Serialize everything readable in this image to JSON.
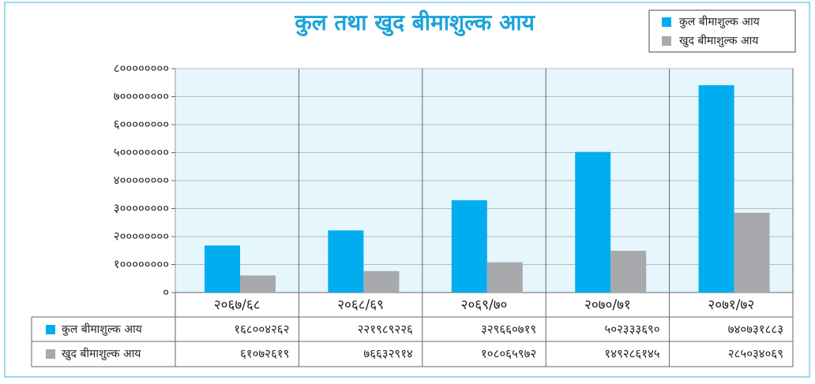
{
  "chart_data": {
    "type": "bar",
    "title": "कुल तथा खुद बीमाशुल्क आय",
    "categories": [
      "२०६७/६८",
      "२०६८/६९",
      "२०६९/७०",
      "२०७०/७१",
      "२०७१/७२"
    ],
    "series": [
      {
        "name": "कुल बीमाशुल्क आय",
        "color": "#00aeef",
        "values": [
          168004262,
          221989226,
          329660719,
          502333690,
          740731883
        ],
        "value_labels": [
          "१६८००४२६२",
          "२२१९८९२२६",
          "३२९६६०७१९",
          "५०२३३३६९०",
          "७४०७३१८८३"
        ]
      },
      {
        "name": "खुद बीमाशुल्क आय",
        "color": "#a7a9ac",
        "values": [
          61072619,
          76632914,
          108065972,
          149286145,
          285034069
        ],
        "value_labels": [
          "६१०७२६१९",
          "७६६३२९१४",
          "१०८०६५९७२",
          "१४९२८६१४५",
          "२८५०३४०६९"
        ]
      }
    ],
    "ylim": [
      0,
      800000000
    ],
    "yticks": [
      {
        "value": 0,
        "label": "०"
      },
      {
        "value": 100000000,
        "label": "१००००००००"
      },
      {
        "value": 200000000,
        "label": "२००००००००"
      },
      {
        "value": 300000000,
        "label": "३००००००००"
      },
      {
        "value": 400000000,
        "label": "४००००००००"
      },
      {
        "value": 500000000,
        "label": "५००००००००"
      },
      {
        "value": 600000000,
        "label": "६००००००००"
      },
      {
        "value": 700000000,
        "label": "७००००००००"
      },
      {
        "value": 800000000,
        "label": "८००००००००"
      }
    ],
    "grid": true,
    "legend": "top-right"
  }
}
